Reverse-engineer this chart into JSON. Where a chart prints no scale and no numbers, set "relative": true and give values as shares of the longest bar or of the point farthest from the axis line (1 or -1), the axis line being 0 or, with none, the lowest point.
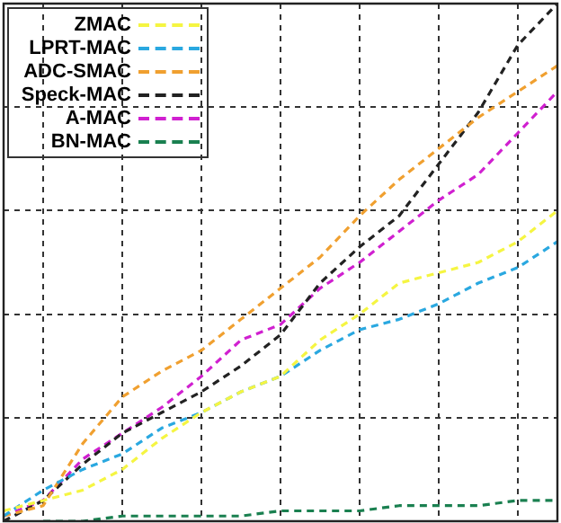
{
  "chart_data": {
    "type": "line",
    "relative": true,
    "categories": [
      null,
      null,
      null,
      null,
      null,
      null,
      null,
      null,
      null,
      null,
      null,
      null,
      null,
      null,
      null
    ],
    "series": [
      {
        "name": "ZMAC",
        "color": "#f5f542",
        "values": [
          0.02,
          0.04,
          0.06,
          0.1,
          0.16,
          0.21,
          0.25,
          0.28,
          0.35,
          0.4,
          0.46,
          0.48,
          0.5,
          0.54,
          0.6
        ]
      },
      {
        "name": "LPRT-MAC",
        "color": "#2aa8e0",
        "values": [
          0.01,
          0.06,
          0.1,
          0.13,
          0.18,
          0.21,
          0.25,
          0.28,
          0.33,
          0.37,
          0.39,
          0.42,
          0.46,
          0.49,
          0.54
        ]
      },
      {
        "name": "ADC-SMAC",
        "color": "#f0a030",
        "values": [
          0.01,
          0.03,
          0.15,
          0.24,
          0.29,
          0.33,
          0.39,
          0.45,
          0.51,
          0.59,
          0.66,
          0.72,
          0.78,
          0.83,
          0.88
        ]
      },
      {
        "name": "Speck-MAC",
        "color": "#222222",
        "values": [
          0,
          0.04,
          0.11,
          0.17,
          0.21,
          0.25,
          0.3,
          0.36,
          0.46,
          0.53,
          0.59,
          0.69,
          0.79,
          0.92,
          1
        ]
      },
      {
        "name": "A-MAC",
        "color": "#d020d0",
        "values": [
          0.01,
          0.04,
          0.12,
          0.17,
          0.22,
          0.28,
          0.35,
          0.38,
          0.45,
          0.5,
          0.56,
          0.62,
          0.67,
          0.75,
          0.83
        ]
      },
      {
        "name": "BN-MAC",
        "color": "#1a8050",
        "values": [
          null,
          0,
          0,
          0.01,
          0.01,
          0.01,
          0.01,
          0.02,
          0.02,
          0.02,
          0.03,
          0.03,
          0.03,
          0.04,
          0.04
        ]
      }
    ],
    "grid": true,
    "legend": "top left",
    "line_style": "dashed",
    "marker": "none"
  }
}
